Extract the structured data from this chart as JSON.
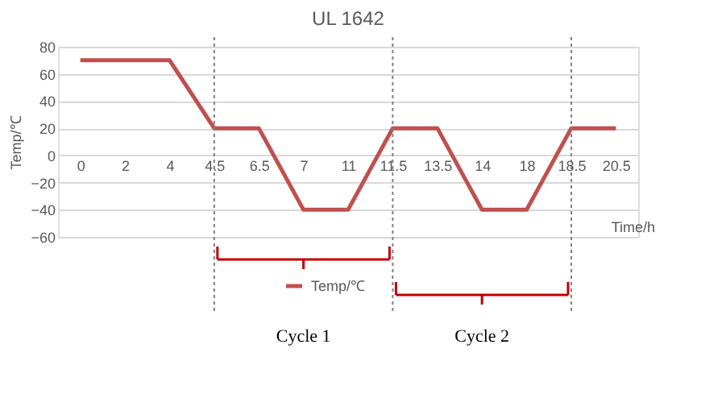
{
  "chart_data": {
    "type": "line",
    "title": "UL 1642",
    "ylabel": "Temp/℃",
    "xlabel": "Time/h",
    "categories": [
      "0",
      "2",
      "4",
      "4.5",
      "6.5",
      "7",
      "11",
      "11.5",
      "13.5",
      "14",
      "18",
      "18.5",
      "20.5"
    ],
    "series": [
      {
        "name": "Temp/℃",
        "color": "#c0504d",
        "values": [
          70,
          70,
          70,
          20,
          20,
          -40,
          -40,
          20,
          20,
          -40,
          -40,
          20,
          20
        ]
      }
    ],
    "ylim": [
      -60,
      80
    ],
    "yticks": [
      -60,
      -40,
      -20,
      0,
      20,
      40,
      60,
      80
    ],
    "grid": "y",
    "legend": "bottom",
    "marker": "none",
    "line_style": "solid",
    "ref_lines": [
      {
        "axis": "x",
        "value": "4.5",
        "color": "#7f7f7f",
        "line_style": "dotted"
      },
      {
        "axis": "x",
        "value": "11.5",
        "color": "#7f7f7f",
        "line_style": "dotted"
      },
      {
        "axis": "x",
        "value": "18.5",
        "color": "#7f7f7f",
        "line_style": "dotted"
      }
    ],
    "annotations": [
      "Cycle 1",
      "Cycle 2"
    ]
  }
}
